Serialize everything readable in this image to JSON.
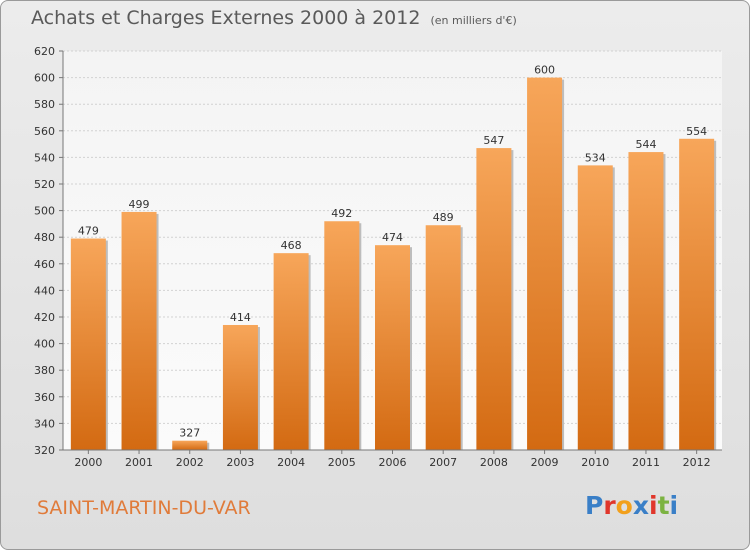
{
  "title": "Achats et Charges Externes 2000 à 2012",
  "unit": "(en milliers d'€)",
  "commune": "SAINT-MARTIN-DU-VAR",
  "logo": {
    "text": "Proxiti",
    "colors": [
      "#3a7fc7",
      "#e0362b",
      "#f2a01c",
      "#3a7fc7",
      "#e0362b",
      "#7cb342",
      "#3a7fc7"
    ]
  },
  "chart_data": {
    "type": "bar",
    "title": "Achats et Charges Externes 2000 à 2012",
    "categories": [
      "2000",
      "2001",
      "2002",
      "2003",
      "2004",
      "2005",
      "2006",
      "2007",
      "2008",
      "2009",
      "2010",
      "2011",
      "2012"
    ],
    "values": [
      479,
      499,
      327,
      414,
      468,
      492,
      474,
      489,
      547,
      600,
      534,
      544,
      554
    ],
    "ylim": [
      320,
      620
    ],
    "yticks": [
      320,
      340,
      360,
      380,
      400,
      420,
      440,
      460,
      480,
      500,
      520,
      540,
      560,
      580,
      600,
      620
    ],
    "grid": true,
    "bar_color_top": "#f7a65a",
    "bar_color_bottom": "#d36a12"
  }
}
